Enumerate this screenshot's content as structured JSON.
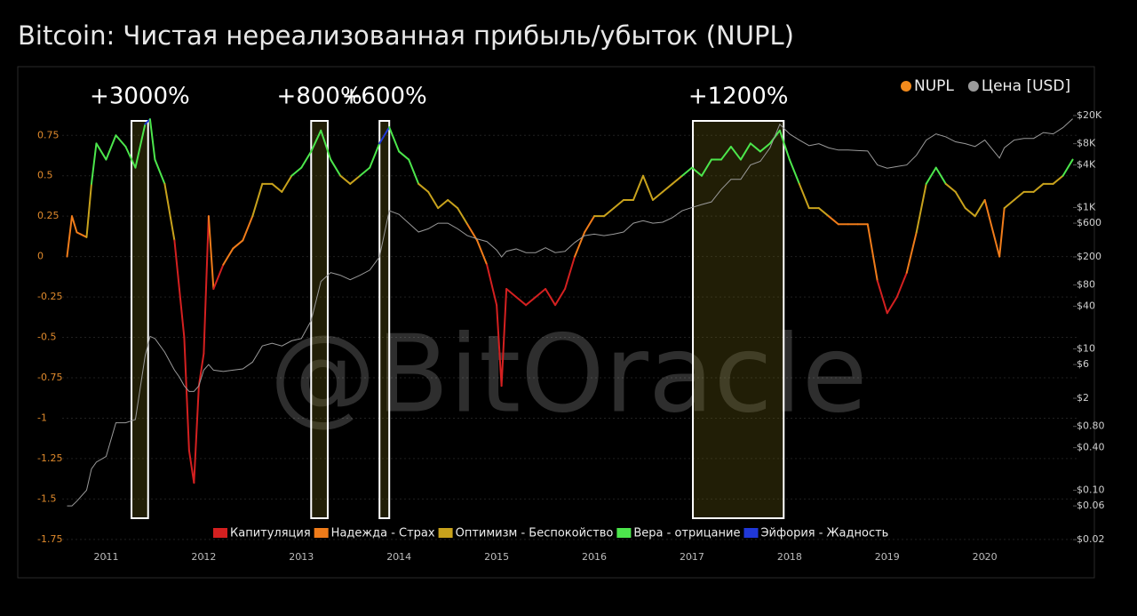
{
  "chart_data": {
    "type": "line",
    "title": "Bitcoin: Чистая нереализованная прибыль/убыток (NUPL)",
    "watermark": "@BitOracle",
    "x": [
      2010.6,
      2010.65,
      2010.7,
      2010.8,
      2010.85,
      2010.9,
      2011.0,
      2011.1,
      2011.2,
      2011.3,
      2011.4,
      2011.45,
      2011.5,
      2011.6,
      2011.7,
      2011.75,
      2011.8,
      2011.85,
      2011.9,
      2011.95,
      2012.0,
      2012.05,
      2012.1,
      2012.2,
      2012.3,
      2012.4,
      2012.5,
      2012.6,
      2012.7,
      2012.8,
      2012.9,
      2013.0,
      2013.1,
      2013.2,
      2013.3,
      2013.4,
      2013.5,
      2013.6,
      2013.7,
      2013.8,
      2013.9,
      2014.0,
      2014.1,
      2014.2,
      2014.3,
      2014.4,
      2014.5,
      2014.6,
      2014.7,
      2014.8,
      2014.9,
      2015.0,
      2015.05,
      2015.1,
      2015.2,
      2015.3,
      2015.4,
      2015.5,
      2015.6,
      2015.7,
      2015.8,
      2015.9,
      2016.0,
      2016.1,
      2016.2,
      2016.3,
      2016.4,
      2016.5,
      2016.6,
      2016.7,
      2016.8,
      2016.9,
      2017.0,
      2017.1,
      2017.2,
      2017.3,
      2017.4,
      2017.5,
      2017.6,
      2017.7,
      2017.8,
      2017.9,
      2018.0,
      2018.1,
      2018.2,
      2018.3,
      2018.4,
      2018.5,
      2018.6,
      2018.7,
      2018.8,
      2018.9,
      2019.0,
      2019.1,
      2019.2,
      2019.3,
      2019.4,
      2019.5,
      2019.6,
      2019.7,
      2019.8,
      2019.9,
      2020.0,
      2020.15,
      2020.2,
      2020.3,
      2020.4,
      2020.5,
      2020.6,
      2020.7,
      2020.8,
      2020.9
    ],
    "series": [
      {
        "name": "NUPL",
        "color": "#f28a1c",
        "values": [
          0.0,
          0.25,
          0.15,
          0.12,
          0.45,
          0.7,
          0.6,
          0.75,
          0.68,
          0.55,
          0.82,
          0.85,
          0.6,
          0.45,
          0.1,
          -0.2,
          -0.5,
          -1.2,
          -1.4,
          -0.8,
          -0.6,
          0.25,
          -0.2,
          -0.05,
          0.05,
          0.1,
          0.25,
          0.45,
          0.45,
          0.4,
          0.5,
          0.55,
          0.65,
          0.78,
          0.6,
          0.5,
          0.45,
          0.5,
          0.55,
          0.7,
          0.8,
          0.65,
          0.6,
          0.45,
          0.4,
          0.3,
          0.35,
          0.3,
          0.2,
          0.1,
          -0.05,
          -0.3,
          -0.8,
          -0.2,
          -0.25,
          -0.3,
          -0.25,
          -0.2,
          -0.3,
          -0.2,
          0.0,
          0.15,
          0.25,
          0.25,
          0.3,
          0.35,
          0.35,
          0.5,
          0.35,
          0.4,
          0.45,
          0.5,
          0.55,
          0.5,
          0.6,
          0.6,
          0.68,
          0.6,
          0.7,
          0.65,
          0.7,
          0.78,
          0.6,
          0.45,
          0.3,
          0.3,
          0.25,
          0.2,
          0.2,
          0.2,
          0.2,
          -0.15,
          -0.35,
          -0.25,
          -0.1,
          0.15,
          0.45,
          0.55,
          0.45,
          0.4,
          0.3,
          0.25,
          0.35,
          0.0,
          0.3,
          0.35,
          0.4,
          0.4,
          0.45,
          0.45,
          0.5,
          0.6
        ]
      },
      {
        "name": "Цена [USD]",
        "color": "#9a9a9a",
        "axis": "y2",
        "values": [
          0.06,
          0.06,
          0.07,
          0.1,
          0.2,
          0.25,
          0.3,
          0.9,
          0.9,
          1,
          8,
          15,
          14,
          9,
          5,
          4,
          3,
          2.5,
          2.5,
          3,
          5,
          6,
          5,
          4.8,
          5,
          5.2,
          6.5,
          11,
          12,
          11,
          13,
          14,
          25,
          90,
          120,
          110,
          95,
          110,
          130,
          200,
          900,
          800,
          600,
          450,
          500,
          600,
          600,
          500,
          400,
          360,
          330,
          250,
          200,
          240,
          260,
          230,
          230,
          270,
          230,
          240,
          320,
          400,
          420,
          400,
          420,
          450,
          600,
          650,
          600,
          620,
          720,
          900,
          1000,
          1100,
          1200,
          1800,
          2500,
          2500,
          4000,
          4500,
          7000,
          15000,
          11000,
          9000,
          7500,
          8000,
          7000,
          6500,
          6500,
          6400,
          6300,
          4000,
          3600,
          3800,
          4000,
          5500,
          9000,
          11000,
          10000,
          8500,
          8000,
          7300,
          9000,
          5000,
          7000,
          9000,
          9500,
          9500,
          11500,
          11000,
          13500,
          18000
        ]
      }
    ],
    "zones": [
      {
        "name": "Капитуляция",
        "color": "#d42020",
        "range": [
          null,
          0
        ]
      },
      {
        "name": "Надежда - Страх",
        "color": "#f07c1a",
        "range": [
          0,
          0.25
        ]
      },
      {
        "name": "Оптимизм - Беспокойство",
        "color": "#c8a21c",
        "range": [
          0.25,
          0.5
        ]
      },
      {
        "name": "Вера - отрицание",
        "color": "#4ce64c",
        "range": [
          0.5,
          0.75
        ]
      },
      {
        "name": "Эйфория - Жадность",
        "color": "#2038d8",
        "range": [
          0.75,
          null
        ]
      }
    ],
    "annotations": [
      {
        "label": "+3000%",
        "x": [
          2011.26,
          2011.43
        ]
      },
      {
        "label": "+800%",
        "x": [
          2013.1,
          2013.27
        ]
      },
      {
        "label": "+600%",
        "x": [
          2013.8,
          2013.9
        ]
      },
      {
        "label": "+1200%",
        "x": [
          2017.01,
          2017.94
        ]
      }
    ],
    "xlim": [
      2010.55,
      2020.94
    ],
    "xticks": [
      2011,
      2012,
      2013,
      2014,
      2015,
      2016,
      2017,
      2018,
      2019,
      2020
    ],
    "ylim": [
      -1.85,
      1.12
    ],
    "yticks": [
      0.75,
      0.5,
      0.25,
      0,
      -0.25,
      -0.5,
      -0.75,
      -1,
      -1.25,
      -1.5,
      -1.75
    ],
    "y2lim": [
      0.0119,
      73600
    ],
    "y2_log": true,
    "y2ticks": [
      {
        "value": 20000,
        "label": "$20K"
      },
      {
        "value": 8000,
        "label": "$8K"
      },
      {
        "value": 4000,
        "label": "$4K"
      },
      {
        "value": 1000,
        "label": "$1K"
      },
      {
        "value": 600,
        "label": "$600"
      },
      {
        "value": 200,
        "label": "$200"
      },
      {
        "value": 80,
        "label": "$80"
      },
      {
        "value": 40,
        "label": "$40"
      },
      {
        "value": 10,
        "label": "$10"
      },
      {
        "value": 6,
        "label": "$6"
      },
      {
        "value": 2,
        "label": "$2"
      },
      {
        "value": 0.8,
        "label": "$0.80"
      },
      {
        "value": 0.4,
        "label": "$0.40"
      },
      {
        "value": 0.1,
        "label": "$0.10"
      },
      {
        "value": 0.06,
        "label": "$0.06"
      },
      {
        "value": 0.02,
        "label": "$0.02"
      }
    ],
    "grid": true
  }
}
